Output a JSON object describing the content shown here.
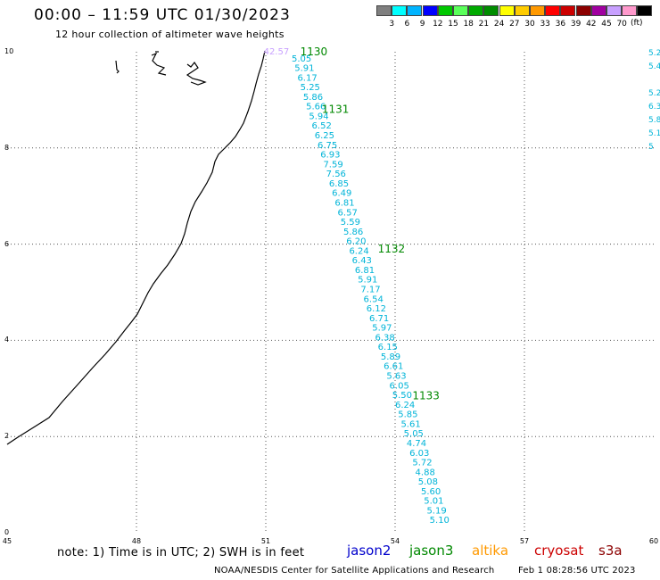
{
  "header": {
    "title": "00:00 – 11:59 UTC 01/30/2023",
    "subtitle": "12 hour collection of altimeter wave heights"
  },
  "legend": {
    "swatches": [
      {
        "color": "#7f7f7f",
        "label": ""
      },
      {
        "color": "#00ffff",
        "label": "3"
      },
      {
        "color": "#00b4ff",
        "label": "6"
      },
      {
        "color": "#0000ff",
        "label": "9"
      },
      {
        "color": "#00c800",
        "label": "12"
      },
      {
        "color": "#5aff5a",
        "label": "15"
      },
      {
        "color": "#00aa00",
        "label": "18"
      },
      {
        "color": "#008c00",
        "label": "21"
      },
      {
        "color": "#ffff00",
        "label": "24"
      },
      {
        "color": "#ffcc00",
        "label": "27"
      },
      {
        "color": "#ff9900",
        "label": "30"
      },
      {
        "color": "#ff0000",
        "label": "33"
      },
      {
        "color": "#cc0000",
        "label": "36"
      },
      {
        "color": "#8c0000",
        "label": "39"
      },
      {
        "color": "#a000a0",
        "label": "42"
      },
      {
        "color": "#c8a0ff",
        "label": "45"
      },
      {
        "color": "#ff99cc",
        "label": "70"
      },
      {
        "color": "#000000",
        "label": ""
      }
    ],
    "unit": "(ft)"
  },
  "axes": {
    "x_ticks": [
      "45",
      "48",
      "51",
      "54",
      "57",
      "60"
    ],
    "y_ticks": [
      "0",
      "2",
      "4",
      "6",
      "8",
      "10"
    ],
    "x_range": [
      45,
      60
    ],
    "y_range": [
      0,
      10
    ]
  },
  "map_data": {
    "pass_labels": [
      {
        "text": "1130",
        "lon": 51.8,
        "lat": 10.0
      },
      {
        "text": "1131",
        "lon": 52.3,
        "lat": 8.8
      },
      {
        "text": "1132",
        "lon": 53.6,
        "lat": 5.9
      },
      {
        "text": "1133",
        "lon": 54.4,
        "lat": 2.85
      }
    ],
    "track_start": {
      "lon": 51.6,
      "lat": 9.8
    },
    "track_end": {
      "lon": 54.8,
      "lat": 0.2
    },
    "track_values": [
      "5.05",
      "5.91",
      "6.17",
      "5.25",
      "5.86",
      "5.66",
      "5.94",
      "6.52",
      "6.25",
      "6.75",
      "6.93",
      "7.59",
      "7.56",
      "6.85",
      "6.49",
      "6.81",
      "6.57",
      "5.59",
      "5.86",
      "6.20",
      "6.24",
      "6.43",
      "6.81",
      "5.91",
      "7.17",
      "6.54",
      "6.12",
      "6.71",
      "5.97",
      "6.38",
      "6.15",
      "5.89",
      "6.61",
      "5.63",
      "6.05",
      "5.50",
      "6.24",
      "5.85",
      "5.61",
      "5.05",
      "4.74",
      "6.03",
      "5.72",
      "4.88",
      "5.08",
      "5.60",
      "5.01",
      "5.19",
      "5.10"
    ],
    "outlier": {
      "text": "42.57",
      "lon": 50.95,
      "lat": 10.0,
      "color": "#c8a0ff"
    },
    "edge_values": [
      "5.2",
      "5.4",
      "5.2",
      "6.3",
      "5.8",
      "5.1",
      "5"
    ],
    "value_color": "#00b4d8",
    "label_color": "#008800"
  },
  "satellites": [
    {
      "name": "jason2",
      "color": "#0000cc"
    },
    {
      "name": "jason3",
      "color": "#008800"
    },
    {
      "name": "altika",
      "color": "#ff9900"
    },
    {
      "name": "cryosat",
      "color": "#cc0000"
    },
    {
      "name": "s3a",
      "color": "#8c0000"
    }
  ],
  "footer": {
    "note": "note: 1) Time is in UTC; 2) SWH is in feet",
    "credit": "NOAA/NESDIS Center for Satellite Applications and Research",
    "timestamp": "Feb  1 08:28:56 UTC 2023"
  }
}
